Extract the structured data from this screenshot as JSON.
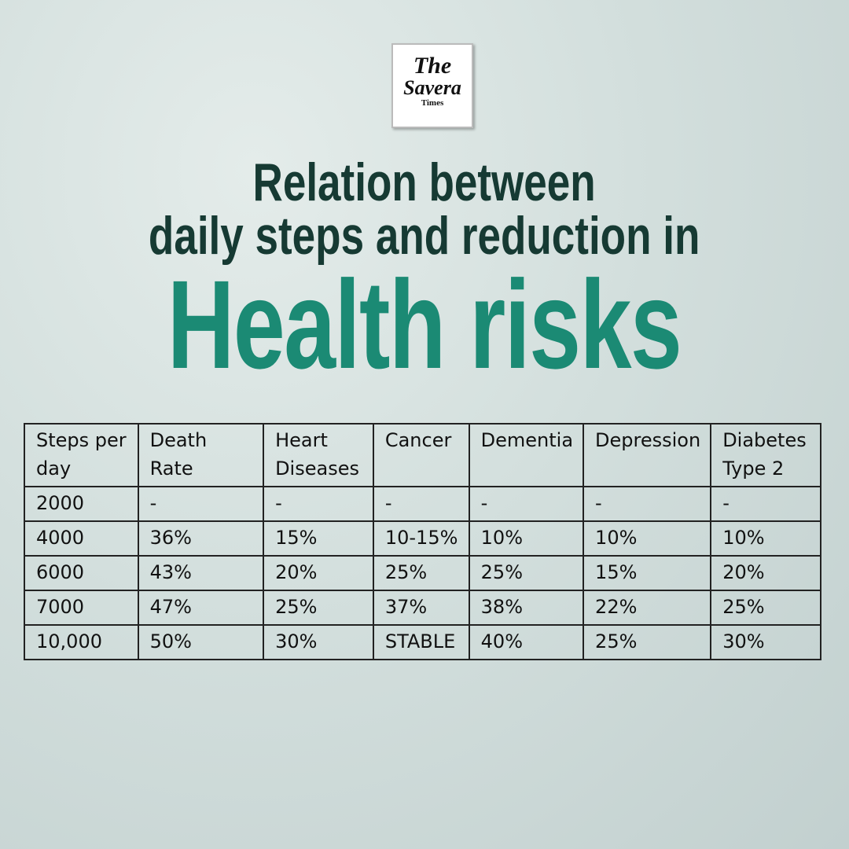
{
  "logo": {
    "line1": "The",
    "line2": "Savera",
    "line3": "Times"
  },
  "title": {
    "line1": "Relation between",
    "line2": "daily steps and reduction in",
    "line3": "Health risks"
  },
  "table": {
    "header": [
      "Steps per day",
      "Death Rate",
      "Heart Diseases",
      "Cancer",
      "Dementia",
      "Depression",
      "Diabetes Type 2"
    ],
    "rows": [
      [
        "2000",
        "-",
        "-",
        "-",
        "-",
        "-",
        "-"
      ],
      [
        "4000",
        "36%",
        "15%",
        "10-15%",
        "10%",
        "10%",
        "10%"
      ],
      [
        "6000",
        "43%",
        "20%",
        "25%",
        "25%",
        "15%",
        "20%"
      ],
      [
        "7000",
        "47%",
        "25%",
        "37%",
        "38%",
        "22%",
        "25%"
      ],
      [
        "10,000",
        "50%",
        "30%",
        "STABLE",
        "40%",
        "25%",
        "30%"
      ]
    ]
  }
}
